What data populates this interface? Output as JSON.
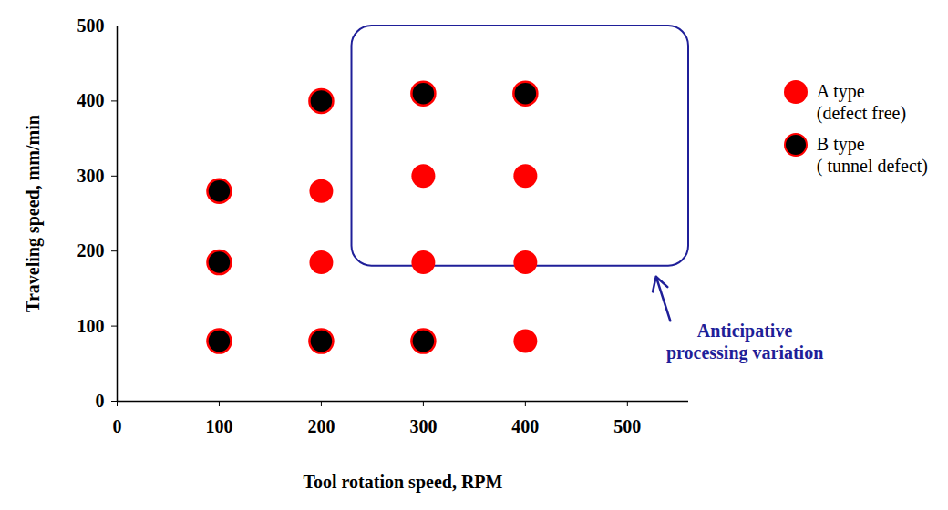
{
  "chart_data": {
    "type": "scatter",
    "xlabel": "Tool rotation speed, RPM",
    "ylabel": "Traveling speed, mm/min",
    "xlim": [
      0,
      560
    ],
    "ylim": [
      0,
      500
    ],
    "xticks": [
      0,
      100,
      200,
      300,
      400,
      500
    ],
    "yticks": [
      0,
      100,
      200,
      300,
      400,
      500
    ],
    "legend": "upper right",
    "series": [
      {
        "name": "A type\n(defect free)",
        "color": "#ff0000",
        "marker": "circle",
        "x": [
          200,
          200,
          300,
          300,
          400,
          400,
          400
        ],
        "values": [
          280,
          185,
          300,
          185,
          300,
          185,
          80
        ]
      },
      {
        "name": "B type\n( tunnel defect)",
        "color": "#000000",
        "marker": "circle_outlined",
        "x": [
          100,
          100,
          100,
          200,
          200,
          300,
          300,
          400
        ],
        "values": [
          280,
          185,
          80,
          400,
          80,
          410,
          80,
          410
        ]
      }
    ],
    "annotations": [
      {
        "text": "Anticipative\nprocessing variation",
        "color": "#1f1f99",
        "region": {
          "x": [
            230,
            560
          ],
          "y": [
            180,
            500
          ]
        }
      }
    ]
  }
}
